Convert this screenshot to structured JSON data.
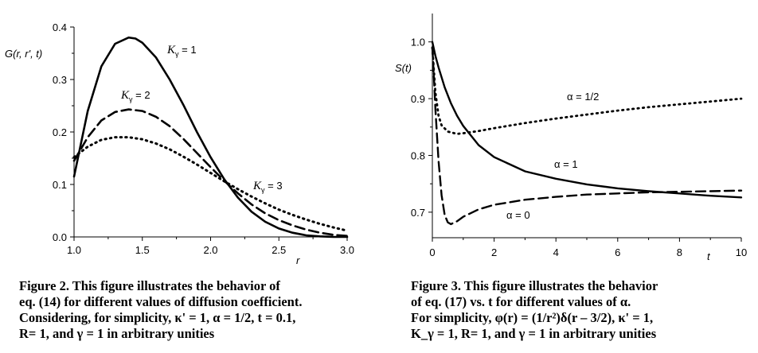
{
  "chart_data": [
    {
      "type": "line",
      "ylabel": "G(r, r', t)",
      "xlabel": "r",
      "xlim": [
        1.0,
        3.0
      ],
      "ylim": [
        0.0,
        0.4
      ],
      "x_ticks": [
        "1.0",
        "1.5",
        "2.0",
        "2.5",
        "3.0"
      ],
      "y_ticks": [
        "0.0",
        "0.1",
        "0.2",
        "0.3",
        "0.4"
      ],
      "series": [
        {
          "name": "K_γ = 1",
          "style": "solid",
          "x": [
            1.0,
            1.1,
            1.2,
            1.3,
            1.4,
            1.45,
            1.5,
            1.6,
            1.7,
            1.8,
            1.9,
            2.0,
            2.1,
            2.2,
            2.3,
            2.4,
            2.5,
            2.6,
            2.7,
            2.8,
            2.9,
            3.0
          ],
          "y": [
            0.115,
            0.24,
            0.325,
            0.368,
            0.38,
            0.378,
            0.37,
            0.342,
            0.3,
            0.252,
            0.2,
            0.152,
            0.11,
            0.075,
            0.048,
            0.029,
            0.016,
            0.008,
            0.003,
            0.001,
            0.0002,
            0.0
          ]
        },
        {
          "name": "K_γ = 2",
          "style": "dashed",
          "x": [
            1.0,
            1.1,
            1.2,
            1.3,
            1.4,
            1.5,
            1.6,
            1.7,
            1.8,
            1.9,
            2.0,
            2.1,
            2.2,
            2.3,
            2.4,
            2.5,
            2.6,
            2.7,
            2.8,
            2.9,
            3.0
          ],
          "y": [
            0.145,
            0.19,
            0.222,
            0.238,
            0.243,
            0.24,
            0.229,
            0.211,
            0.187,
            0.16,
            0.133,
            0.107,
            0.083,
            0.062,
            0.045,
            0.032,
            0.022,
            0.014,
            0.008,
            0.004,
            0.002
          ]
        },
        {
          "name": "K_γ = 3",
          "style": "dotted",
          "x": [
            1.0,
            1.1,
            1.2,
            1.3,
            1.4,
            1.5,
            1.6,
            1.7,
            1.8,
            1.9,
            2.0,
            2.1,
            2.2,
            2.3,
            2.4,
            2.5,
            2.6,
            2.7,
            2.8,
            2.9,
            3.0
          ],
          "y": [
            0.152,
            0.172,
            0.185,
            0.19,
            0.19,
            0.186,
            0.178,
            0.167,
            0.153,
            0.138,
            0.122,
            0.106,
            0.091,
            0.077,
            0.064,
            0.052,
            0.042,
            0.033,
            0.025,
            0.018,
            0.012
          ]
        }
      ],
      "labels": [
        {
          "base": "K",
          "sub": "γ",
          "text": " = 1"
        },
        {
          "base": "K",
          "sub": "γ",
          "text": " = 2"
        },
        {
          "base": "K",
          "sub": "γ",
          "text": " = 3"
        }
      ]
    },
    {
      "type": "line",
      "ylabel": "S(t)",
      "xlabel": "t",
      "xlim": [
        0,
        10
      ],
      "ylim": [
        0.655,
        1.05
      ],
      "x_ticks": [
        "0",
        "2",
        "4",
        "6",
        "8",
        "10"
      ],
      "y_ticks": [
        "0.7",
        "0.8",
        "0.9",
        "1.0"
      ],
      "series": [
        {
          "name": "α = 1",
          "style": "solid",
          "x": [
            0,
            0.1,
            0.2,
            0.4,
            0.6,
            0.8,
            1.0,
            1.5,
            2,
            3,
            4,
            5,
            6,
            7,
            8,
            9,
            10
          ],
          "y": [
            1.0,
            0.975,
            0.955,
            0.92,
            0.892,
            0.87,
            0.852,
            0.818,
            0.797,
            0.772,
            0.759,
            0.749,
            0.742,
            0.737,
            0.733,
            0.729,
            0.726
          ]
        },
        {
          "name": "α = 0",
          "style": "dashed",
          "x": [
            0,
            0.05,
            0.1,
            0.2,
            0.3,
            0.4,
            0.5,
            0.6,
            0.8,
            1.0,
            1.5,
            2,
            3,
            4,
            5,
            6,
            7,
            8,
            9,
            10
          ],
          "y": [
            0.99,
            0.94,
            0.88,
            0.79,
            0.73,
            0.695,
            0.682,
            0.679,
            0.684,
            0.692,
            0.705,
            0.713,
            0.722,
            0.727,
            0.731,
            0.733,
            0.735,
            0.736,
            0.737,
            0.738
          ]
        },
        {
          "name": "α = 1/2",
          "style": "dotted",
          "x": [
            0,
            0.05,
            0.1,
            0.2,
            0.3,
            0.5,
            0.8,
            1.0,
            1.5,
            2,
            3,
            4,
            5,
            6,
            7,
            8,
            9,
            10
          ],
          "y": [
            0.99,
            0.95,
            0.91,
            0.87,
            0.853,
            0.842,
            0.838,
            0.839,
            0.843,
            0.848,
            0.857,
            0.865,
            0.872,
            0.879,
            0.885,
            0.89,
            0.895,
            0.9
          ]
        }
      ],
      "labels": [
        {
          "text": "α = 1/2"
        },
        {
          "text": "α = 1"
        },
        {
          "text": "α = 0"
        }
      ]
    }
  ],
  "fig2_caption": [
    "Figure 2. This figure illustrates the behavior of",
    "eq. (14) for different values of diffusion coefficient.",
    "Considering, for simplicity, κ' = 1, α = 1/2, t = 0.1,",
    "R= 1, and γ = 1 in arbitrary unities"
  ],
  "fig3_caption": [
    "Figure 3. This figure illustrates the behavior",
    "of eq. (17) vs. t for different values of α.",
    "For simplicity, φ(r) = (1/r²)δ(r – 3/2), κ' = 1,",
    "K_γ = 1, R= 1, and γ = 1 in arbitrary unities"
  ]
}
